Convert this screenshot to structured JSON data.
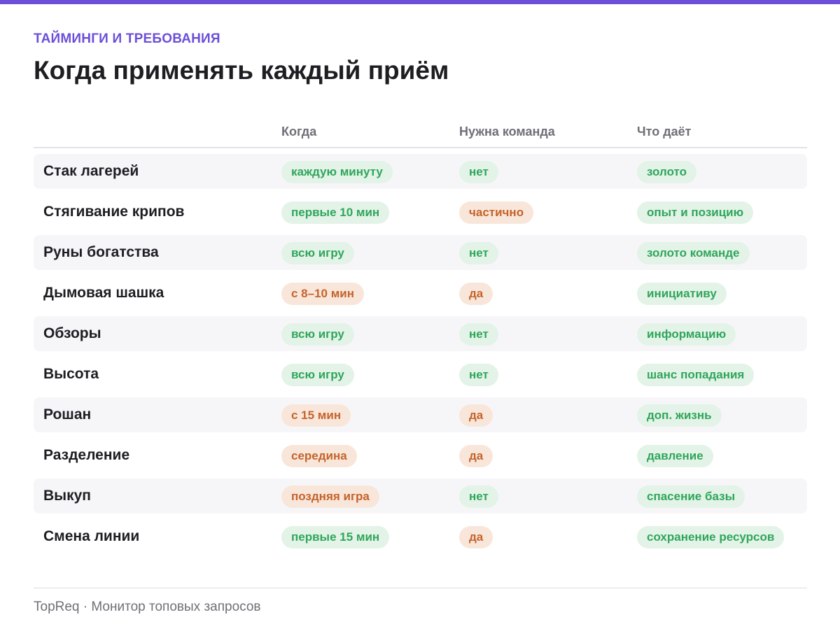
{
  "header": {
    "kicker": "ТАЙМИНГИ И ТРЕБОВАНИЯ",
    "title": "Когда применять каждый приём"
  },
  "table": {
    "columns": [
      "Когда",
      "Нужна команда",
      "Что даёт"
    ],
    "rows": [
      {
        "label": "Стак лагерей",
        "when": "каждую минуту",
        "when_tone": "green",
        "team": "нет",
        "team_tone": "green",
        "gives": "золото"
      },
      {
        "label": "Стягивание крипов",
        "when": "первые 10 мин",
        "when_tone": "green",
        "team": "частично",
        "team_tone": "orange",
        "gives": "опыт и позицию"
      },
      {
        "label": "Руны богатства",
        "when": "всю игру",
        "when_tone": "green",
        "team": "нет",
        "team_tone": "green",
        "gives": "золото команде"
      },
      {
        "label": "Дымовая шашка",
        "when": "с 8–10 мин",
        "when_tone": "orange",
        "team": "да",
        "team_tone": "orange",
        "gives": "инициативу"
      },
      {
        "label": "Обзоры",
        "when": "всю игру",
        "when_tone": "green",
        "team": "нет",
        "team_tone": "green",
        "gives": "информацию"
      },
      {
        "label": "Высота",
        "when": "всю игру",
        "when_tone": "green",
        "team": "нет",
        "team_tone": "green",
        "gives": "шанс попадания"
      },
      {
        "label": "Рошан",
        "when": "с 15 мин",
        "when_tone": "orange",
        "team": "да",
        "team_tone": "orange",
        "gives": "доп. жизнь"
      },
      {
        "label": "Разделение",
        "when": "середина",
        "when_tone": "orange",
        "team": "да",
        "team_tone": "orange",
        "gives": "давление"
      },
      {
        "label": "Выкуп",
        "when": "поздняя игра",
        "when_tone": "orange",
        "team": "нет",
        "team_tone": "green",
        "gives": "спасение базы"
      },
      {
        "label": "Смена линии",
        "when": "первые 15 мин",
        "when_tone": "green",
        "team": "да",
        "team_tone": "orange",
        "gives": "сохранение ресурсов"
      }
    ]
  },
  "footer": {
    "brand": "TopReq",
    "separator": "·",
    "tagline": "Монитор топовых запросов"
  },
  "colors": {
    "accent": "#6b4fd8",
    "green_text": "#2fa65a",
    "green_bg": "#e3f3e8",
    "orange_text": "#c4632a",
    "orange_bg": "#f9e6da",
    "row_alt_bg": "#f6f6f9"
  }
}
